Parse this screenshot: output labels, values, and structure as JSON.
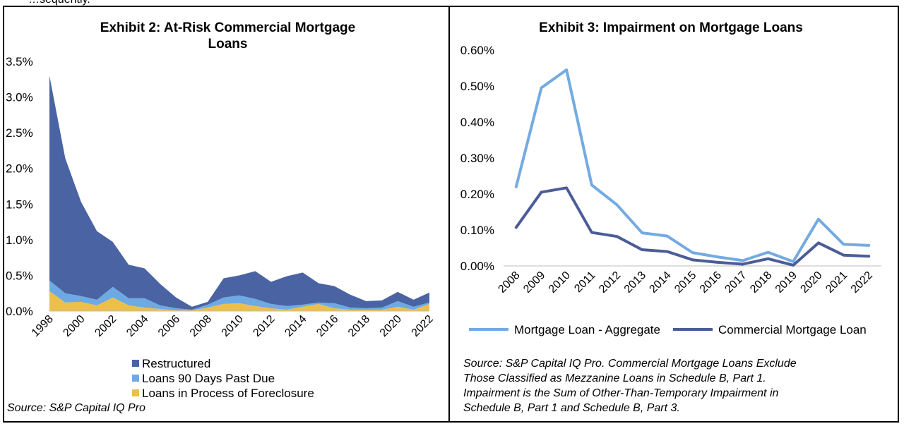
{
  "header": {
    "fragment": "…sequently."
  },
  "chart_data": [
    {
      "type": "area",
      "stacked": true,
      "title": "Exhibit 2: At-Risk Commercial Mortgage Loans",
      "title_lines": [
        "Exhibit 2: At-Risk Commercial Mortgage",
        "Loans"
      ],
      "x": [
        1998,
        1999,
        2000,
        2001,
        2002,
        2003,
        2004,
        2005,
        2006,
        2007,
        2008,
        2009,
        2010,
        2011,
        2012,
        2013,
        2014,
        2015,
        2016,
        2017,
        2018,
        2019,
        2020,
        2021,
        2022
      ],
      "xticks": [
        "1998",
        "2000",
        "2002",
        "2004",
        "2006",
        "2008",
        "2010",
        "2012",
        "2014",
        "2016",
        "2018",
        "2020",
        "2022"
      ],
      "ylim": [
        0,
        3.5
      ],
      "yticks": [
        "0.0%",
        "0.5%",
        "1.0%",
        "1.5%",
        "2.0%",
        "2.5%",
        "3.0%",
        "3.5%"
      ],
      "series": [
        {
          "name": "Loans in Process of Foreclosure",
          "color": "#ECBF4B",
          "values": [
            0.28,
            0.12,
            0.13,
            0.08,
            0.19,
            0.08,
            0.05,
            0.03,
            0.01,
            0.01,
            0.05,
            0.1,
            0.11,
            0.07,
            0.04,
            0.02,
            0.06,
            0.1,
            0.04,
            0.02,
            0.02,
            0.02,
            0.06,
            0.02,
            0.1
          ]
        },
        {
          "name": "Loans 90 Days Past Due",
          "color": "#6DAAE3",
          "values": [
            0.15,
            0.13,
            0.08,
            0.08,
            0.15,
            0.1,
            0.13,
            0.05,
            0.03,
            0.01,
            0.04,
            0.09,
            0.11,
            0.1,
            0.06,
            0.05,
            0.03,
            0.02,
            0.07,
            0.03,
            0.02,
            0.03,
            0.08,
            0.04,
            0.02
          ]
        },
        {
          "name": "Restructured",
          "color": "#4A63A2",
          "values": [
            2.87,
            1.89,
            1.32,
            0.96,
            0.63,
            0.47,
            0.42,
            0.3,
            0.15,
            0.04,
            0.04,
            0.27,
            0.28,
            0.39,
            0.31,
            0.42,
            0.45,
            0.27,
            0.24,
            0.18,
            0.1,
            0.1,
            0.13,
            0.1,
            0.14
          ]
        }
      ],
      "legend": [
        "Restructured",
        "Loans 90 Days Past Due",
        "Loans in Process of Foreclosure"
      ],
      "source": "Source: S&P Capital IQ Pro"
    },
    {
      "type": "line",
      "title": "Exhibit 3: Impairment on Mortgage Loans",
      "categories": [
        "2008",
        "2009",
        "2010",
        "2011",
        "2012",
        "2013",
        "2014",
        "2015",
        "2016",
        "2017",
        "2018",
        "2019",
        "2020",
        "2021",
        "2022"
      ],
      "ylim": [
        0,
        0.6
      ],
      "yticks": [
        "0.00%",
        "0.10%",
        "0.20%",
        "0.30%",
        "0.40%",
        "0.50%",
        "0.60%"
      ],
      "series": [
        {
          "name": "Mortgage Loan - Aggregate",
          "color": "#73ABE1",
          "values": [
            0.22,
            0.495,
            0.545,
            0.225,
            0.17,
            0.092,
            0.083,
            0.037,
            0.025,
            0.015,
            0.038,
            0.012,
            0.13,
            0.06,
            0.057
          ]
        },
        {
          "name": "Commercial Mortgage Loan",
          "color": "#4B5C98",
          "values": [
            0.107,
            0.205,
            0.217,
            0.093,
            0.082,
            0.045,
            0.04,
            0.017,
            0.01,
            0.005,
            0.02,
            0.002,
            0.064,
            0.03,
            0.027
          ]
        }
      ],
      "source_lines": [
        "Source: S&P Capital IQ Pro. Commercial Mortgage Loans Exclude",
        "Those Classified as Mezzanine Loans in Schedule B, Part 1.",
        "Impairment is the Sum of Other-Than-Temporary Impairment in",
        "Schedule B, Part 1 and Schedule B, Part 3."
      ]
    }
  ]
}
